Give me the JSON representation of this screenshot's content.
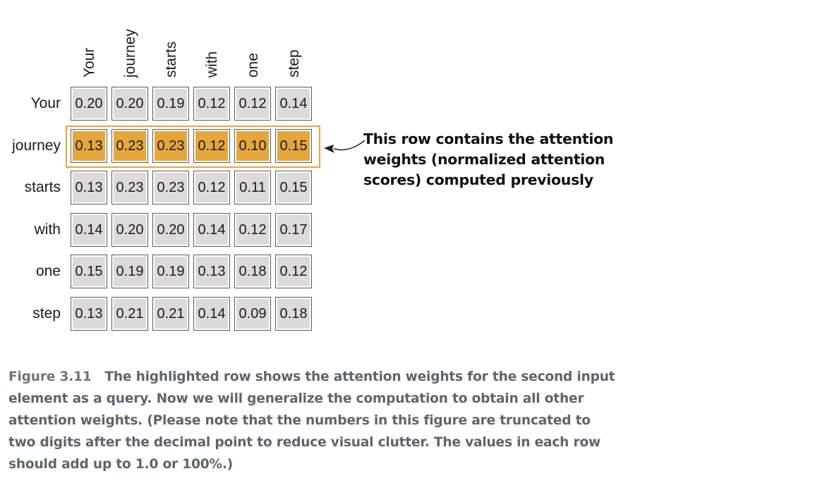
{
  "columns": [
    "Your",
    "journey",
    "starts",
    "with",
    "one",
    "step"
  ],
  "rows": [
    {
      "label": "Your",
      "values": [
        "0.20",
        "0.20",
        "0.19",
        "0.12",
        "0.12",
        "0.14"
      ],
      "highlighted": false
    },
    {
      "label": "journey",
      "values": [
        "0.13",
        "0.23",
        "0.23",
        "0.12",
        "0.10",
        "0.15"
      ],
      "highlighted": true
    },
    {
      "label": "starts",
      "values": [
        "0.13",
        "0.23",
        "0.23",
        "0.12",
        "0.11",
        "0.15"
      ],
      "highlighted": false
    },
    {
      "label": "with",
      "values": [
        "0.14",
        "0.20",
        "0.20",
        "0.14",
        "0.12",
        "0.17"
      ],
      "highlighted": false
    },
    {
      "label": "one",
      "values": [
        "0.15",
        "0.19",
        "0.19",
        "0.13",
        "0.18",
        "0.12"
      ],
      "highlighted": false
    },
    {
      "label": "step",
      "values": [
        "0.13",
        "0.21",
        "0.21",
        "0.14",
        "0.09",
        "0.18"
      ],
      "highlighted": false
    }
  ],
  "annotation": "This row contains the attention weights (normalized attention scores) computed previously",
  "caption": {
    "figure_label": "Figure 3.11",
    "text": "The highlighted row shows the attention weights for the second input element as a query. Now we will generalize the computation to obtain all other attention weights. (Please note that the numbers in this figure are truncated to two digits after the decimal point to reduce visual clutter. The values in each row should add up to 1.0 or 100%.)"
  },
  "colors": {
    "cell": "#dcdbd7",
    "highlight": "#e5a73b",
    "caption": "#5a6670"
  }
}
